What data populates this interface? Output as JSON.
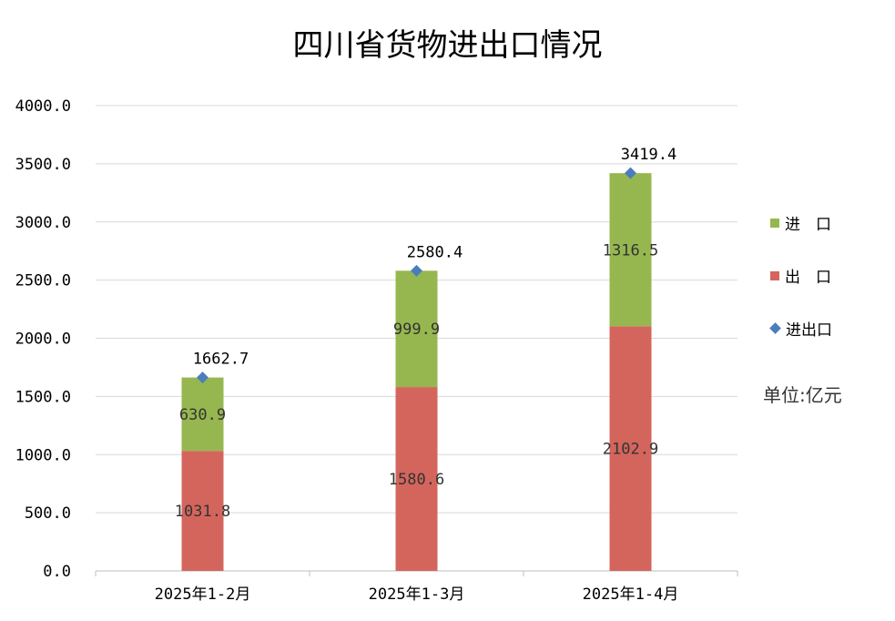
{
  "chart_data": {
    "type": "bar",
    "stacked": true,
    "title": "四川省货物进出口情况",
    "unit_label": "单位:亿元",
    "categories": [
      "2025年1-2月",
      "2025年1-3月",
      "2025年1-4月"
    ],
    "series": [
      {
        "name": "出　口",
        "kind": "bar",
        "color": "#D4655D",
        "values": [
          1031.8,
          1580.6,
          2102.9
        ]
      },
      {
        "name": "进　口",
        "kind": "bar",
        "color": "#96B74F",
        "values": [
          630.9,
          999.9,
          1316.5
        ]
      },
      {
        "name": "进出口",
        "kind": "marker",
        "color": "#4A7EBB",
        "values": [
          1662.7,
          2580.4,
          3419.4
        ]
      }
    ],
    "ylim": [
      0,
      4000
    ],
    "yticks": [
      "0.0",
      "500.0",
      "1000.0",
      "1500.0",
      "2000.0",
      "2500.0",
      "3000.0",
      "3500.0",
      "4000.0"
    ],
    "xlabel": "",
    "ylabel": "",
    "grid": true,
    "legend_position": "right"
  }
}
